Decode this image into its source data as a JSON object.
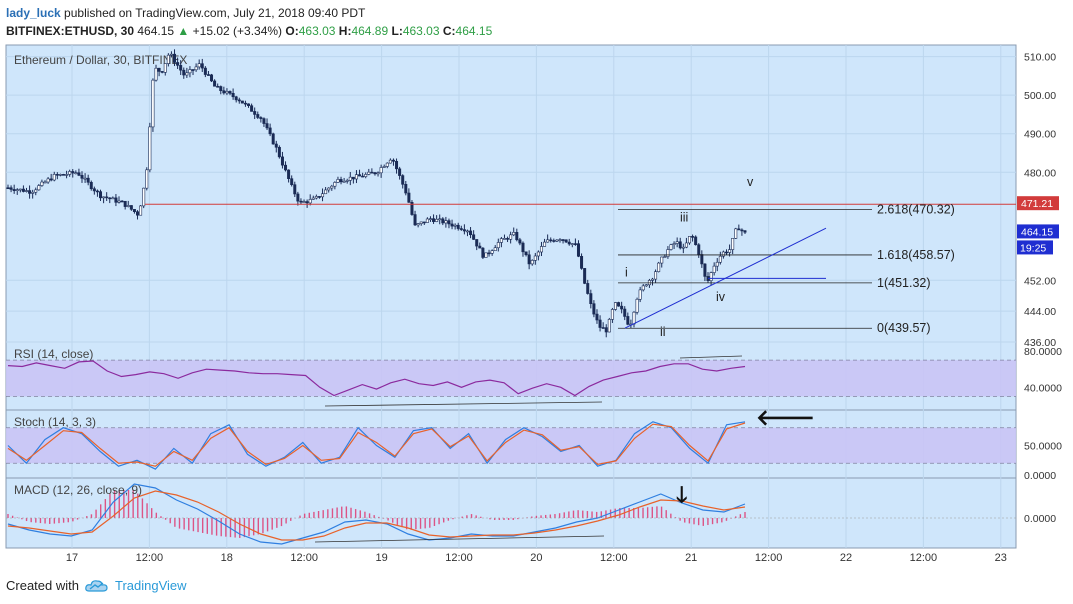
{
  "header": {
    "author": "lady_luck",
    "published_text": "published on TradingView.com, July 21, 2018 09:40 PDT",
    "symbol": "BITFINEX:ETHUSD, 30",
    "last": "464.15",
    "change": "+15.02 (+3.34%)",
    "open_label": "O:",
    "open": "463.03",
    "high_label": "H:",
    "high": "464.89",
    "low_label": "L:",
    "low": "463.03",
    "close_label": "C:",
    "close": "464.15"
  },
  "colors": {
    "up": "#2e9e45",
    "bg": "#cfe6fb",
    "candle": "#1a2b55",
    "level": "#d23b3b",
    "blue": "#1f2ed1",
    "osc_band": "#c9c4f5"
  },
  "footer": {
    "created_with": "Created with",
    "brand": "TradingView",
    "logo_icon": "tradingview-cloud-icon"
  },
  "chart_data": [
    {
      "type": "candlestick",
      "title": "Ethereum / Dollar, 30, BITFINEX",
      "y_ticks": [
        "510.00",
        "500.00",
        "490.00",
        "480.00",
        "452.00",
        "444.00",
        "436.00"
      ],
      "x_ticks": [
        "17",
        "12:00",
        "18",
        "12:00",
        "19",
        "12:00",
        "20",
        "12:00",
        "21",
        "12:00",
        "22",
        "12:00",
        "23"
      ],
      "candles_path": [
        [
          0,
          476
        ],
        [
          3,
          475
        ],
        [
          6,
          479
        ],
        [
          9,
          480
        ],
        [
          12,
          474
        ],
        [
          15,
          472
        ],
        [
          17,
          469
        ],
        [
          18,
          479
        ],
        [
          19,
          507
        ],
        [
          20,
          506
        ],
        [
          21,
          511
        ],
        [
          23,
          505
        ],
        [
          25,
          508
        ],
        [
          27,
          502
        ],
        [
          30,
          499
        ],
        [
          33,
          494
        ],
        [
          35,
          486
        ],
        [
          37,
          476
        ],
        [
          38,
          472
        ],
        [
          40,
          473
        ],
        [
          43,
          478
        ],
        [
          46,
          479
        ],
        [
          48,
          480
        ],
        [
          50,
          484
        ],
        [
          52,
          474
        ],
        [
          53,
          466
        ],
        [
          55,
          468
        ],
        [
          57,
          467
        ],
        [
          60,
          465
        ],
        [
          62,
          458
        ],
        [
          64,
          462
        ],
        [
          66,
          464
        ],
        [
          68,
          456
        ],
        [
          70,
          462
        ],
        [
          72,
          463
        ],
        [
          74,
          461
        ],
        [
          75,
          452
        ],
        [
          76,
          445
        ],
        [
          77,
          440
        ],
        [
          78,
          439
        ],
        [
          79,
          446
        ],
        [
          80,
          444
        ],
        [
          81,
          440
        ],
        [
          82,
          448
        ],
        [
          83,
          451
        ],
        [
          84,
          453
        ],
        [
          85,
          457
        ],
        [
          86,
          460
        ],
        [
          87,
          462
        ],
        [
          88,
          460
        ],
        [
          89,
          464
        ],
        [
          90,
          459
        ],
        [
          91,
          451
        ],
        [
          92,
          456
        ],
        [
          93,
          459
        ],
        [
          94,
          460
        ],
        [
          95,
          466
        ],
        [
          96,
          464.15
        ]
      ],
      "candles_x_range": [
        0,
        96
      ],
      "last_price_label": "464.15",
      "countdown": "19:25",
      "level_label": "471.21",
      "fib_levels": [
        {
          "label": "0(439.57)",
          "value": 439.57
        },
        {
          "label": "1(451.32)",
          "value": 451.32
        },
        {
          "label": "1.618(458.57)",
          "value": 458.57
        },
        {
          "label": "2.618(470.32)",
          "value": 470.32
        }
      ],
      "wave_labels": [
        "i",
        "ii",
        "iii",
        "iv",
        "v"
      ]
    },
    {
      "type": "line",
      "title": "RSI (14, close)",
      "y_ticks": [
        "80.0000",
        "40.0000"
      ],
      "series": [
        {
          "values": [
            64,
            63,
            67,
            64,
            61,
            68,
            69,
            58,
            52,
            54,
            57,
            55,
            50,
            56,
            60,
            59,
            58,
            56,
            55,
            55,
            54,
            53,
            40,
            31,
            37,
            43,
            38,
            45,
            49,
            44,
            42,
            46,
            40,
            46,
            48,
            45,
            33,
            39,
            44,
            40,
            31,
            41,
            48,
            52,
            56,
            58,
            63,
            66,
            66,
            60,
            58,
            61,
            63
          ]
        }
      ],
      "divergences": 2
    },
    {
      "type": "line",
      "title": "Stoch (14, 3, 3)",
      "y_ticks": [
        "50.0000",
        "0.0000"
      ],
      "series": [
        {
          "values": [
            50,
            20,
            60,
            80,
            70,
            40,
            15,
            25,
            10,
            45,
            20,
            70,
            85,
            35,
            15,
            30,
            55,
            20,
            30,
            80,
            50,
            30,
            75,
            80,
            45,
            70,
            20,
            60,
            80,
            65,
            40,
            50,
            15,
            25,
            70,
            90,
            80,
            45,
            20,
            85,
            90
          ]
        },
        {
          "values": [
            45,
            25,
            50,
            75,
            72,
            45,
            20,
            22,
            15,
            40,
            25,
            62,
            80,
            40,
            18,
            28,
            50,
            25,
            28,
            72,
            55,
            32,
            70,
            78,
            48,
            66,
            24,
            55,
            76,
            68,
            42,
            48,
            18,
            24,
            62,
            86,
            82,
            50,
            24,
            78,
            88
          ]
        }
      ]
    },
    {
      "type": "line",
      "title": "MACD (12, 26, close, 9)",
      "y_ticks": [
        "0.0000"
      ],
      "series": [
        {
          "values": [
            -0.6,
            -1.2,
            -1.6,
            -1.8,
            -1.2,
            1.6,
            3.4,
            3.0,
            1.8,
            0.9,
            -0.3,
            -1.6,
            -2.4,
            -2.6,
            -2.0,
            -1.4,
            -0.4,
            -0.2,
            -0.6,
            -1.6,
            -2.2,
            -2.0,
            -1.6,
            -1.8,
            -1.8,
            -1.4,
            -1.0,
            -0.4,
            0.0,
            0.8,
            1.6,
            2.4,
            1.5,
            0.8,
            0.6,
            1.4
          ]
        },
        {
          "values": [
            -0.8,
            -1.0,
            -1.3,
            -1.6,
            -1.4,
            0.2,
            2.0,
            2.7,
            2.3,
            1.6,
            0.6,
            -0.6,
            -1.6,
            -2.2,
            -2.2,
            -1.8,
            -1.0,
            -0.5,
            -0.5,
            -1.0,
            -1.7,
            -1.9,
            -1.8,
            -1.7,
            -1.7,
            -1.5,
            -1.2,
            -0.8,
            -0.3,
            0.3,
            1.1,
            1.8,
            1.7,
            1.2,
            0.8,
            1.1
          ]
        }
      ],
      "divergences": 2
    }
  ]
}
